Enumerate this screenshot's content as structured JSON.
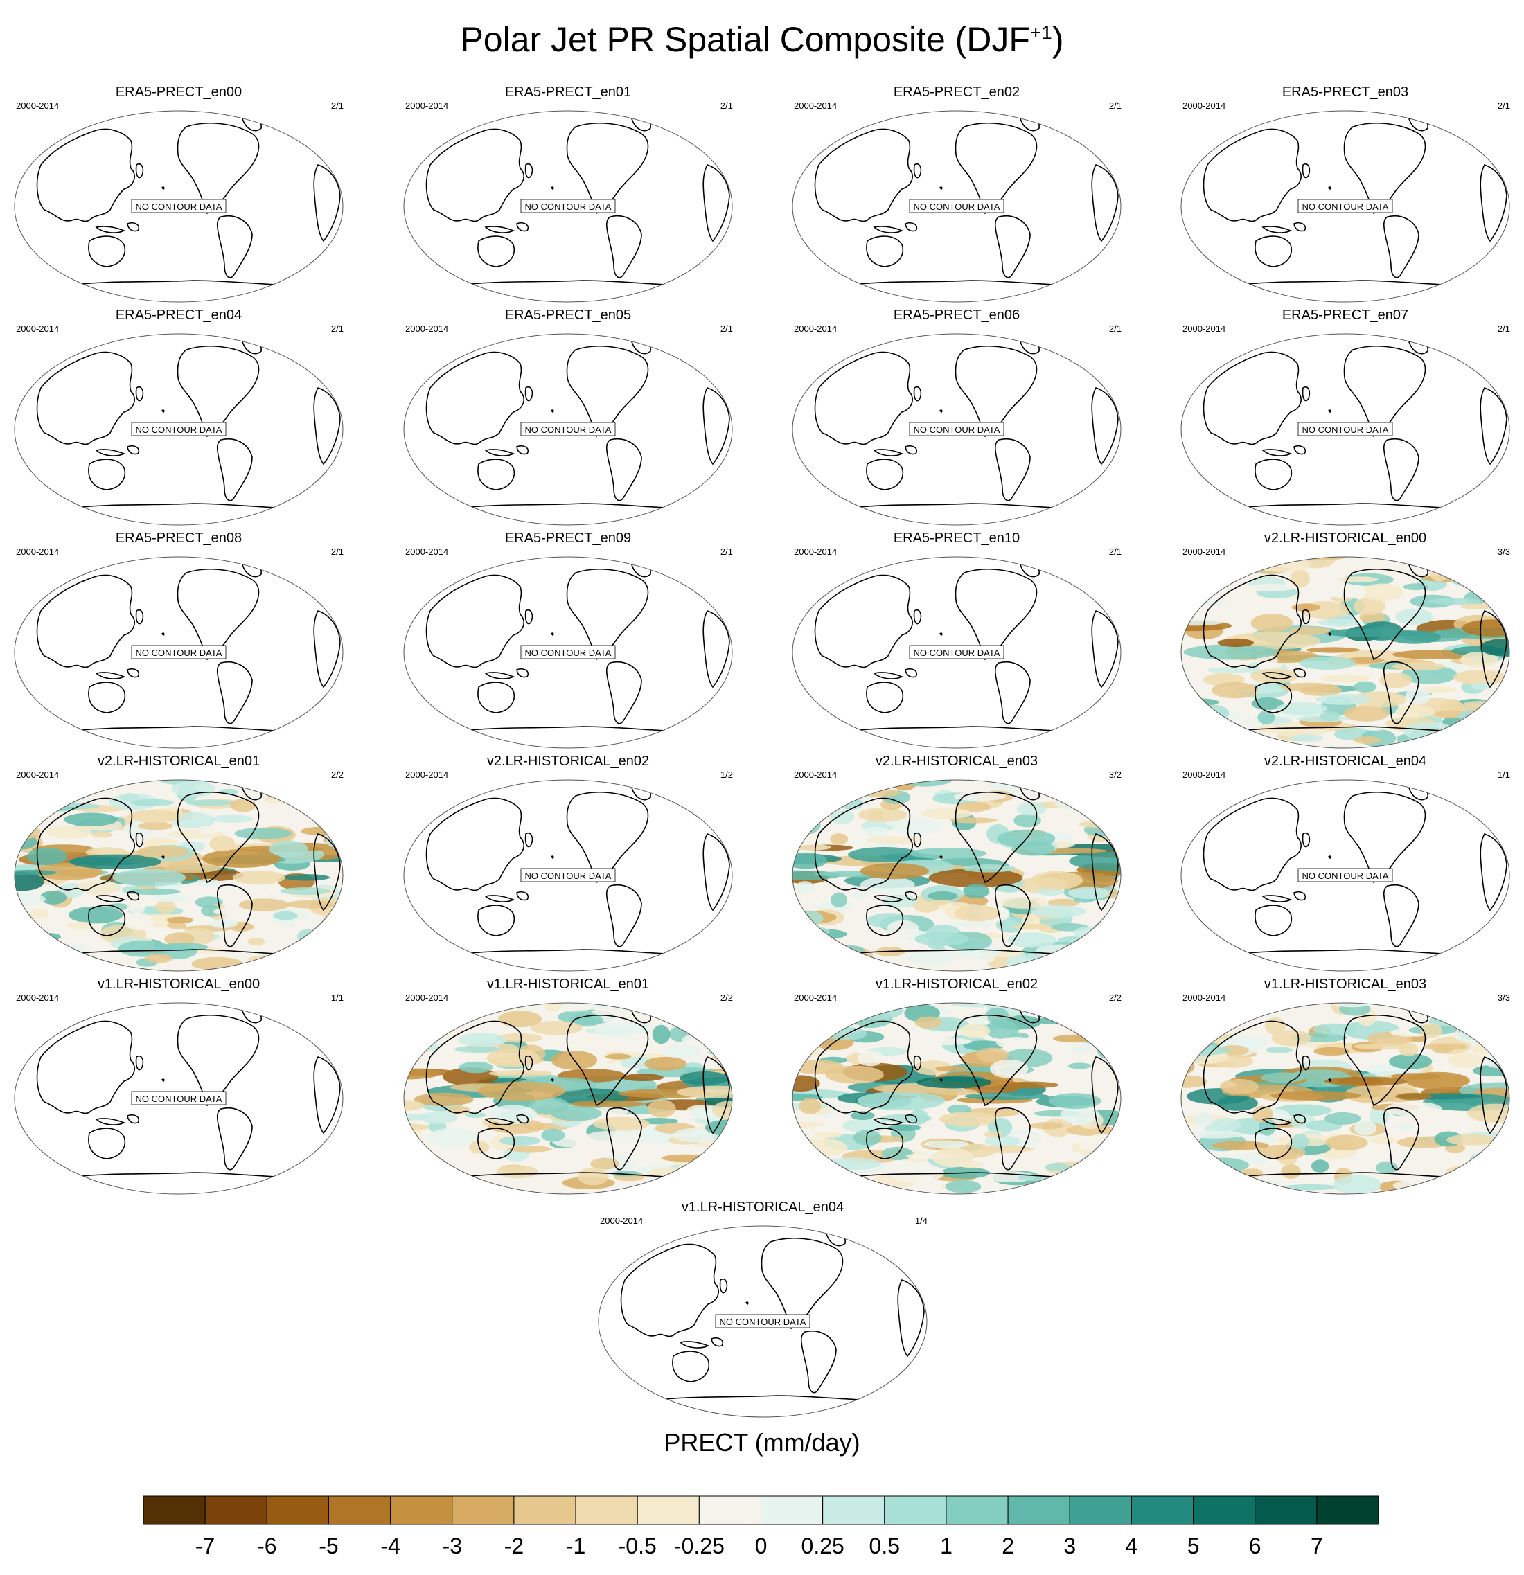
{
  "title": "Polar Jet PR Spatial Composite (DJF",
  "title_sup": "+1",
  "no_data_label": "NO CONTOUR DATA",
  "colorbar": {
    "label": "PRECT (mm/day)",
    "tick_labels": [
      "-7",
      "-6",
      "-5",
      "-4",
      "-3",
      "-2",
      "-1",
      "-0.5",
      "-0.25",
      "0",
      "0.25",
      "0.5",
      "1",
      "2",
      "3",
      "4",
      "5",
      "6",
      "7"
    ],
    "colors": [
      "#543005",
      "#7b4309",
      "#975c12",
      "#b07625",
      "#c6913e",
      "#d7ab62",
      "#e6c88e",
      "#efdbad",
      "#f6eacc",
      "#f5f3ec",
      "#e6f3ef",
      "#c9ebe5",
      "#a8dfd6",
      "#84cec1",
      "#5fb8a9",
      "#3ea194",
      "#228a7f",
      "#0e7265",
      "#035a4d",
      "#01412f"
    ]
  },
  "chart_data": {
    "type": "map-composite",
    "variable": "PRECT",
    "units": "mm/day",
    "levels": [
      -7,
      -6,
      -5,
      -4,
      -3,
      -2,
      -1,
      -0.5,
      -0.25,
      0,
      0.25,
      0.5,
      1,
      2,
      3,
      4,
      5,
      6,
      7
    ],
    "panels": [
      {
        "name": "ERA5-PRECT_en00",
        "period": "2000-2014",
        "count": "2/1",
        "has_data": false
      },
      {
        "name": "ERA5-PRECT_en01",
        "period": "2000-2014",
        "count": "2/1",
        "has_data": false
      },
      {
        "name": "ERA5-PRECT_en02",
        "period": "2000-2014",
        "count": "2/1",
        "has_data": false
      },
      {
        "name": "ERA5-PRECT_en03",
        "period": "2000-2014",
        "count": "2/1",
        "has_data": false
      },
      {
        "name": "ERA5-PRECT_en04",
        "period": "2000-2014",
        "count": "2/1",
        "has_data": false
      },
      {
        "name": "ERA5-PRECT_en05",
        "period": "2000-2014",
        "count": "2/1",
        "has_data": false
      },
      {
        "name": "ERA5-PRECT_en06",
        "period": "2000-2014",
        "count": "2/1",
        "has_data": false
      },
      {
        "name": "ERA5-PRECT_en07",
        "period": "2000-2014",
        "count": "2/1",
        "has_data": false
      },
      {
        "name": "ERA5-PRECT_en08",
        "period": "2000-2014",
        "count": "2/1",
        "has_data": false
      },
      {
        "name": "ERA5-PRECT_en09",
        "period": "2000-2014",
        "count": "2/1",
        "has_data": false
      },
      {
        "name": "ERA5-PRECT_en10",
        "period": "2000-2014",
        "count": "2/1",
        "has_data": false
      },
      {
        "name": "v2.LR-HISTORICAL_en00",
        "period": "2000-2014",
        "count": "3/3",
        "has_data": true
      },
      {
        "name": "v2.LR-HISTORICAL_en01",
        "period": "2000-2014",
        "count": "2/2",
        "has_data": true
      },
      {
        "name": "v2.LR-HISTORICAL_en02",
        "period": "2000-2014",
        "count": "1/2",
        "has_data": false
      },
      {
        "name": "v2.LR-HISTORICAL_en03",
        "period": "2000-2014",
        "count": "3/2",
        "has_data": true
      },
      {
        "name": "v2.LR-HISTORICAL_en04",
        "period": "2000-2014",
        "count": "1/1",
        "has_data": false
      },
      {
        "name": "v1.LR-HISTORICAL_en00",
        "period": "2000-2014",
        "count": "1/1",
        "has_data": false
      },
      {
        "name": "v1.LR-HISTORICAL_en01",
        "period": "2000-2014",
        "count": "2/2",
        "has_data": true
      },
      {
        "name": "v1.LR-HISTORICAL_en02",
        "period": "2000-2014",
        "count": "2/2",
        "has_data": true
      },
      {
        "name": "v1.LR-HISTORICAL_en03",
        "period": "2000-2014",
        "count": "3/3",
        "has_data": true
      },
      {
        "name": "v1.LR-HISTORICAL_en04",
        "period": "2000-2014",
        "count": "1/4",
        "has_data": false
      }
    ]
  }
}
